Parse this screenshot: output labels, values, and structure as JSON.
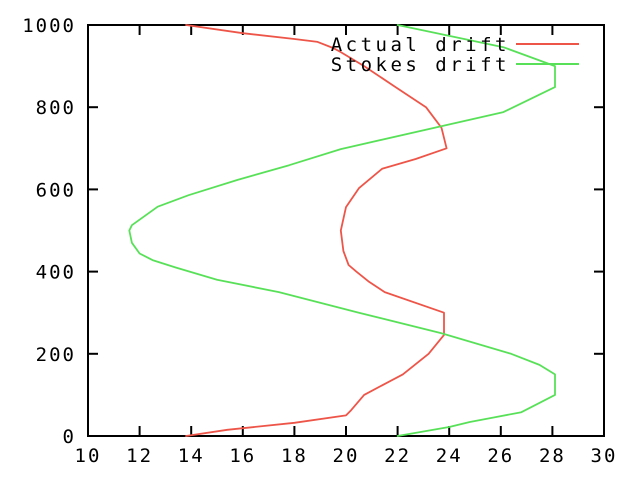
{
  "background": "#ffffff",
  "axis_color": "#000000",
  "chart_data": {
    "type": "line",
    "title": "",
    "xlabel": "",
    "ylabel": "",
    "x_range": [
      10,
      30
    ],
    "y_range": [
      0,
      1000
    ],
    "x_ticks": [
      10,
      12,
      14,
      16,
      18,
      20,
      22,
      24,
      26,
      28,
      30
    ],
    "y_ticks": [
      0,
      200,
      400,
      600,
      800,
      1000
    ],
    "grid": false,
    "legend_position": "top-right-inside",
    "series": [
      {
        "name": "Actual drift",
        "color": "#ee5549",
        "points": [
          [
            13.8,
            1000
          ],
          [
            16.0,
            980
          ],
          [
            18.0,
            966
          ],
          [
            18.9,
            959
          ],
          [
            19.5,
            944
          ],
          [
            19.8,
            934
          ],
          [
            20.7,
            900
          ],
          [
            21.9,
            850
          ],
          [
            23.1,
            800
          ],
          [
            23.7,
            750
          ],
          [
            23.9,
            700
          ],
          [
            22.7,
            674
          ],
          [
            21.4,
            650
          ],
          [
            20.5,
            603
          ],
          [
            20.0,
            557
          ],
          [
            19.8,
            500
          ],
          [
            19.9,
            450
          ],
          [
            20.1,
            416
          ],
          [
            20.4,
            400
          ],
          [
            20.9,
            375
          ],
          [
            21.5,
            350
          ],
          [
            23.8,
            300
          ],
          [
            23.8,
            246
          ],
          [
            23.2,
            200
          ],
          [
            22.2,
            150
          ],
          [
            20.7,
            100
          ],
          [
            20.2,
            63
          ],
          [
            20.0,
            50
          ],
          [
            18.0,
            32
          ],
          [
            15.4,
            15
          ],
          [
            13.8,
            0
          ]
        ]
      },
      {
        "name": "Stokes drift",
        "color": "#58e158",
        "points": [
          [
            22.0,
            1000
          ],
          [
            26.1,
            946
          ],
          [
            28.1,
            900
          ],
          [
            28.1,
            849
          ],
          [
            26.1,
            788
          ],
          [
            19.8,
            698
          ],
          [
            17.8,
            659
          ],
          [
            15.8,
            623
          ],
          [
            13.9,
            586
          ],
          [
            12.7,
            558
          ],
          [
            11.7,
            513
          ],
          [
            11.6,
            500
          ],
          [
            11.7,
            470
          ],
          [
            12.0,
            444
          ],
          [
            12.5,
            428
          ],
          [
            13.4,
            410
          ],
          [
            15.0,
            380
          ],
          [
            17.4,
            350
          ],
          [
            20.5,
            300
          ],
          [
            23.7,
            250
          ],
          [
            26.4,
            200
          ],
          [
            27.5,
            173
          ],
          [
            28.1,
            150
          ],
          [
            28.1,
            100
          ],
          [
            26.8,
            58
          ],
          [
            25.8,
            46
          ],
          [
            24.8,
            34
          ],
          [
            24.0,
            22
          ],
          [
            22.0,
            0
          ]
        ]
      }
    ]
  }
}
